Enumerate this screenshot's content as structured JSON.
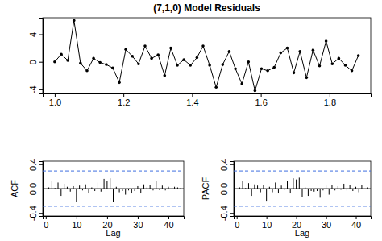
{
  "chart_data": [
    {
      "type": "line",
      "title": "(7,1,0) Model Residuals",
      "color": "#000000",
      "marker": "circle",
      "x": [
        1.0,
        1.019,
        1.038,
        1.056,
        1.075,
        1.094,
        1.113,
        1.132,
        1.15,
        1.169,
        1.188,
        1.207,
        1.226,
        1.244,
        1.263,
        1.282,
        1.301,
        1.32,
        1.338,
        1.357,
        1.376,
        1.395,
        1.414,
        1.432,
        1.451,
        1.47,
        1.489,
        1.508,
        1.526,
        1.545,
        1.564,
        1.583,
        1.602,
        1.62,
        1.639,
        1.658,
        1.677,
        1.696,
        1.714,
        1.733,
        1.752,
        1.771,
        1.79,
        1.808,
        1.827,
        1.846,
        1.865,
        1.884
      ],
      "values": [
        0,
        1.1,
        0.2,
        6.0,
        -0.2,
        -1.3,
        0.5,
        -0.1,
        -0.4,
        -0.9,
        -3.0,
        1.8,
        0.8,
        -0.3,
        2.3,
        0.5,
        1.0,
        -2.0,
        2.0,
        -0.5,
        0.3,
        -0.5,
        0.6,
        2.3,
        -0.5,
        -3.7,
        -0.4,
        1.5,
        -1.0,
        -3.2,
        0.0,
        -4.2,
        -1.0,
        -1.3,
        -0.8,
        1.3,
        2.0,
        -1.6,
        1.5,
        -2.3,
        1.7,
        -0.6,
        3.0,
        -0.3,
        0.5,
        -0.5,
        -1.3,
        0.9
      ],
      "xlim": [
        0.965,
        1.92
      ],
      "ylim": [
        -4.6,
        6.4
      ],
      "xticks": [
        {
          "value": 1,
          "label": "1.0"
        },
        1.2,
        1.4,
        1.6,
        1.8
      ],
      "yticks": [
        -4,
        0,
        4
      ]
    },
    {
      "type": "bar",
      "x_label": "Lag",
      "y_label": "ACF",
      "color": "#000000",
      "x": [
        1,
        2,
        3,
        4,
        5,
        6,
        7,
        8,
        9,
        10,
        11,
        12,
        13,
        14,
        15,
        16,
        17,
        18,
        19,
        20,
        21,
        22,
        23,
        24,
        25,
        26,
        27,
        28,
        29,
        30,
        31,
        32,
        33,
        34,
        35,
        36,
        37,
        38,
        39,
        40,
        41,
        42,
        43,
        44
      ],
      "values": [
        0.02,
        0.13,
        0.01,
        0.1,
        -0.12,
        0.08,
        0.03,
        -0.05,
        0.04,
        -0.22,
        0.05,
        -0.03,
        0.07,
        -0.08,
        0.02,
        -0.04,
        0.1,
        -0.05,
        0.16,
        0.12,
        0.17,
        -0.22,
        0.03,
        -0.06,
        -0.04,
        -0.1,
        -0.03,
        -0.08,
        -0.04,
        0.04,
        -0.08,
        0.07,
        0.02,
        0.06,
        -0.03,
        0.12,
        -0.02,
        0.05,
        -0.03,
        0.03,
        -0.01,
        0.03,
        0.02,
        0.01
      ],
      "conf_limits": [
        -0.29,
        0.29
      ],
      "xlim": [
        -1,
        45
      ],
      "ylim": [
        -0.45,
        0.45
      ],
      "xticks": [
        0,
        10,
        20,
        30,
        40
      ],
      "yticks": [
        -0.4,
        {
          "value": 0,
          "label": "0.0"
        },
        0.4
      ]
    },
    {
      "type": "bar",
      "x_label": "Lag",
      "y_label": "PACF",
      "color": "#000000",
      "x": [
        1,
        2,
        3,
        4,
        5,
        6,
        7,
        8,
        9,
        10,
        11,
        12,
        13,
        14,
        15,
        16,
        17,
        18,
        19,
        20,
        21,
        22,
        23,
        24,
        25,
        26,
        27,
        28,
        29,
        30,
        31,
        32,
        33,
        34,
        35,
        36,
        37,
        38,
        39,
        40,
        41,
        42,
        43,
        44
      ],
      "values": [
        0.02,
        0.13,
        0.01,
        0.09,
        -0.12,
        0.07,
        0.05,
        -0.06,
        0.06,
        -0.2,
        0.03,
        -0.06,
        0.1,
        -0.08,
        0.05,
        -0.02,
        0.13,
        -0.08,
        0.17,
        0.15,
        0.18,
        -0.14,
        0.02,
        -0.12,
        -0.04,
        -0.05,
        -0.04,
        -0.15,
        -0.03,
        0.05,
        -0.1,
        0.06,
        -0.03,
        0.04,
        -0.02,
        0.08,
        -0.03,
        0.06,
        -0.04,
        0.03,
        -0.06,
        0.06,
        -0.01,
        0.02
      ],
      "conf_limits": [
        -0.29,
        0.29
      ],
      "xlim": [
        -1,
        45
      ],
      "ylim": [
        -0.45,
        0.45
      ],
      "xticks": [
        0,
        10,
        20,
        30,
        40
      ],
      "yticks": [
        -0.4,
        {
          "value": 0,
          "label": "0.0"
        },
        0.4
      ]
    }
  ]
}
